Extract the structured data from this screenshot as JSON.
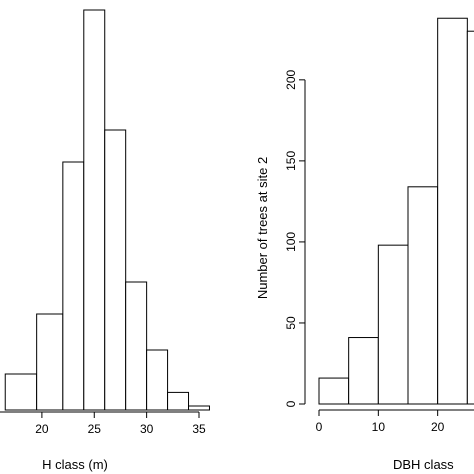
{
  "chart_data": [
    {
      "type": "bar",
      "subtype": "histogram",
      "xlabel": "H class (m)",
      "ylabel": "",
      "bin_edges": [
        16.5,
        19.5,
        22,
        24,
        26,
        28,
        30,
        32,
        34,
        36
      ],
      "values": [
        4.5,
        12,
        31,
        50,
        35,
        16,
        7.5,
        2.2,
        0.5
      ],
      "ylim": [
        0,
        50
      ],
      "x_ticks": [
        20,
        25,
        30,
        35
      ],
      "x_tick_labels": [
        "20",
        "25",
        "30",
        "35"
      ],
      "xlim": [
        16,
        35
      ]
    },
    {
      "type": "bar",
      "subtype": "histogram",
      "xlabel": "DBH class",
      "ylabel": "Number of trees at site 2",
      "bin_edges": [
        0,
        5,
        10,
        15,
        20,
        25,
        30
      ],
      "values": [
        16,
        41,
        98,
        134,
        238,
        230
      ],
      "ylim": [
        0,
        240
      ],
      "y_ticks": [
        0,
        50,
        100,
        150,
        200
      ],
      "y_tick_labels": [
        "0",
        "50",
        "100",
        "150",
        "200"
      ],
      "x_ticks": [
        0,
        10,
        20
      ],
      "x_tick_labels": [
        "0",
        "10",
        "20"
      ],
      "xlim": [
        0,
        30
      ]
    }
  ]
}
